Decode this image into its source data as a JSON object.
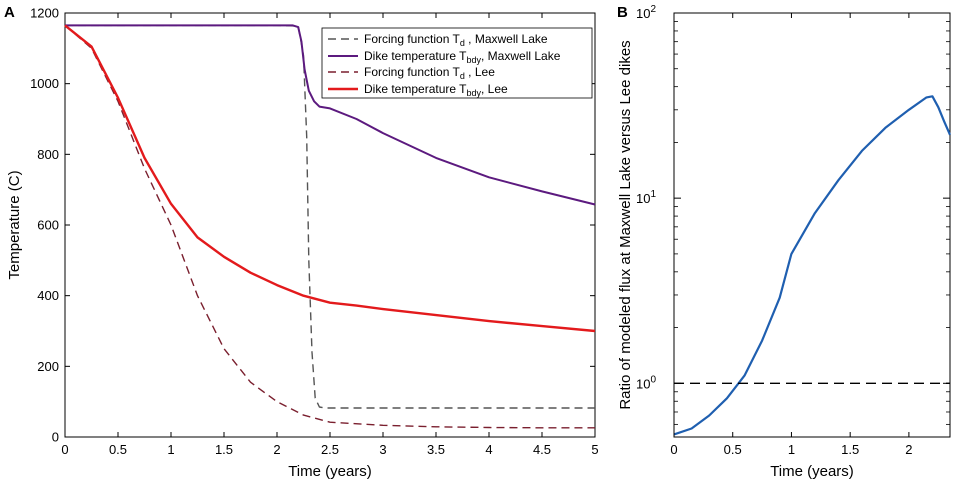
{
  "chart_data": [
    {
      "panel": "A",
      "type": "line",
      "xlabel": "Time (years)",
      "ylabel": "Temperature (C)",
      "xlim": [
        0,
        5
      ],
      "ylim": [
        0,
        1200
      ],
      "xticks": [
        0,
        0.5,
        1,
        1.5,
        2,
        2.5,
        3,
        3.5,
        4,
        4.5,
        5
      ],
      "yticks": [
        0,
        200,
        400,
        600,
        800,
        1000,
        1200
      ],
      "legend_position": "top-right",
      "series": [
        {
          "name": "Forcing function Td , Maxwell Lake",
          "legend_main": "Forcing function T",
          "legend_sub": "d",
          "legend_tail": " , Maxwell Lake",
          "color": "#555555",
          "dash": "dashed",
          "x": [
            0,
            2.0,
            2.2,
            2.25,
            2.28,
            2.3,
            2.33,
            2.36,
            2.4,
            2.45,
            5
          ],
          "y": [
            1165,
            1165,
            1163,
            1080,
            850,
            500,
            240,
            110,
            85,
            82,
            82
          ]
        },
        {
          "name": "Dike temperature Tbdy, Maxwell Lake",
          "legend_main": "Dike temperature T",
          "legend_sub": "bdy",
          "legend_tail": ", Maxwell Lake",
          "color": "#5c1a7f",
          "dash": "solid",
          "x": [
            0,
            2.15,
            2.2,
            2.23,
            2.26,
            2.3,
            2.35,
            2.4,
            2.5,
            2.75,
            3,
            3.5,
            4,
            4.5,
            5
          ],
          "y": [
            1165,
            1165,
            1160,
            1120,
            1040,
            980,
            950,
            935,
            930,
            900,
            860,
            790,
            735,
            695,
            658
          ]
        },
        {
          "name": "Forcing function Td , Lee",
          "legend_main": "Forcing function T",
          "legend_sub": "d",
          "legend_tail": " , Lee",
          "color": "#7a1f2e",
          "dash": "dashed",
          "x": [
            0,
            0.25,
            0.5,
            0.75,
            1,
            1.25,
            1.5,
            1.75,
            2,
            2.25,
            2.5,
            3,
            3.5,
            4,
            4.5,
            5
          ],
          "y": [
            1165,
            1100,
            950,
            760,
            600,
            400,
            250,
            155,
            100,
            62,
            42,
            33,
            29,
            27,
            26,
            26
          ]
        },
        {
          "name": "Dike temperature Tbdy, Lee",
          "legend_main": "Dike temperature T",
          "legend_sub": "bdy",
          "legend_tail": ", Lee",
          "color": "#e31a1c",
          "dash": "solid",
          "x": [
            0,
            0.25,
            0.5,
            0.75,
            1,
            1.25,
            1.5,
            1.75,
            2,
            2.25,
            2.5,
            2.75,
            3,
            3.5,
            4,
            4.5,
            5
          ],
          "y": [
            1165,
            1105,
            960,
            790,
            660,
            565,
            510,
            465,
            430,
            400,
            380,
            372,
            362,
            345,
            328,
            314,
            300
          ]
        }
      ]
    },
    {
      "panel": "B",
      "type": "line",
      "xlabel": "Time (years)",
      "ylabel": "Ratio of modeled flux at Maxwell Lake versus Lee dikes",
      "xlim": [
        0,
        2.35
      ],
      "ylim_log10": [
        -0.29,
        2
      ],
      "yscale": "log",
      "xticks": [
        0,
        0.5,
        1,
        1.5,
        2
      ],
      "ytick_base": "10",
      "ytick_exponents": [
        "0",
        "1",
        "2"
      ],
      "series": [
        {
          "name": "Flux ratio",
          "color": "#1f5fb0",
          "dash": "solid",
          "x": [
            0,
            0.15,
            0.3,
            0.45,
            0.6,
            0.75,
            0.9,
            1.0,
            1.2,
            1.4,
            1.6,
            1.8,
            2.0,
            2.15,
            2.2,
            2.25,
            2.3,
            2.35
          ],
          "y": [
            0.53,
            0.57,
            0.67,
            0.83,
            1.1,
            1.7,
            2.9,
            5.0,
            8.3,
            12.5,
            18,
            24,
            30,
            35,
            35.5,
            31,
            26,
            22
          ]
        },
        {
          "name": "Reference ratio 1",
          "color": "#000000",
          "dash": "dashed",
          "x": [
            0,
            2.35
          ],
          "y": [
            1,
            1
          ]
        }
      ]
    }
  ]
}
